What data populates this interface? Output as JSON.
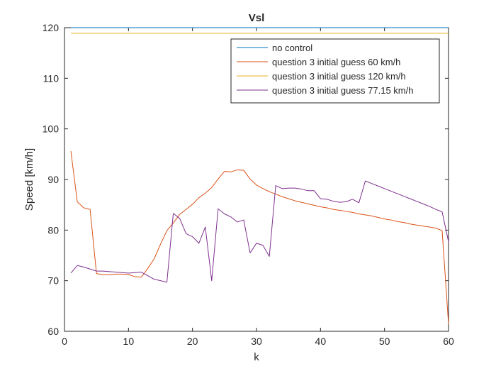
{
  "chart_data": {
    "type": "line",
    "title": "Vsl",
    "xlabel": "k",
    "ylabel": "Speed [km/h]",
    "xlim": [
      0,
      60
    ],
    "ylim": [
      60,
      120
    ],
    "xticks": [
      0,
      10,
      20,
      30,
      40,
      50,
      60
    ],
    "yticks": [
      60,
      70,
      80,
      90,
      100,
      110,
      120
    ],
    "grid": false,
    "legend_position": "top-right",
    "series": [
      {
        "name": "no control",
        "color": "#0072BD",
        "x": [
          1,
          60
        ],
        "y": [
          120,
          120
        ]
      },
      {
        "name": "question 3 initial guess 60 km/h",
        "color": "#D95319",
        "x": [
          1,
          2,
          3,
          4,
          5,
          6,
          7,
          8,
          9,
          10,
          11,
          12,
          13,
          14,
          15,
          16,
          17,
          18,
          19,
          20,
          21,
          22,
          23,
          24,
          25,
          26,
          27,
          28,
          29,
          30,
          31,
          32,
          33,
          34,
          35,
          36,
          37,
          38,
          39,
          40,
          41,
          42,
          43,
          44,
          45,
          46,
          47,
          48,
          49,
          50,
          51,
          52,
          53,
          54,
          55,
          56,
          57,
          58,
          59,
          60
        ],
        "y": [
          95.6,
          85.6,
          84.4,
          84.1,
          71.4,
          71.2,
          71.2,
          71.3,
          71.3,
          71.2,
          70.8,
          70.7,
          72.4,
          74.3,
          77.2,
          79.9,
          81.4,
          83.1,
          84.1,
          85.1,
          86.4,
          87.3,
          88.4,
          90.1,
          91.6,
          91.5,
          91.9,
          91.8,
          90.1,
          88.9,
          88.2,
          87.6,
          87.1,
          86.6,
          86.2,
          85.8,
          85.5,
          85.2,
          84.9,
          84.6,
          84.4,
          84.1,
          83.9,
          83.7,
          83.5,
          83.2,
          83.0,
          82.8,
          82.5,
          82.2,
          82.0,
          81.7,
          81.5,
          81.2,
          81.0,
          80.8,
          80.6,
          80.4,
          79.9,
          61.4
        ]
      },
      {
        "name": "question 3 initial guess 120 km/h",
        "color": "#EDB120",
        "x": [
          1,
          60
        ],
        "y": [
          118.9,
          118.9
        ]
      },
      {
        "name": "question 3 initial guess 77.15 km/h",
        "color": "#7E2F8E",
        "x": [
          1,
          2,
          3,
          4,
          5,
          6,
          7,
          8,
          9,
          10,
          11,
          12,
          13,
          14,
          15,
          16,
          17,
          18,
          19,
          20,
          21,
          22,
          23,
          24,
          25,
          26,
          27,
          28,
          29,
          30,
          31,
          32,
          33,
          34,
          35,
          36,
          37,
          38,
          39,
          40,
          41,
          42,
          43,
          44,
          45,
          46,
          47,
          48,
          49,
          50,
          51,
          52,
          53,
          54,
          55,
          56,
          57,
          58,
          59,
          60
        ],
        "y": [
          71.5,
          73.0,
          72.7,
          72.3,
          71.9,
          71.9,
          71.8,
          71.7,
          71.6,
          71.5,
          71.6,
          71.7,
          71.0,
          70.3,
          70.0,
          69.7,
          83.3,
          82.3,
          79.3,
          78.7,
          77.4,
          80.6,
          70.0,
          84.2,
          83.2,
          82.6,
          81.6,
          82.0,
          75.5,
          77.4,
          77.0,
          74.8,
          88.8,
          88.2,
          88.3,
          88.3,
          88.1,
          87.8,
          87.8,
          86.2,
          86.1,
          85.7,
          85.5,
          85.6,
          86.1,
          85.4,
          89.7,
          89.2,
          88.7,
          88.2,
          87.7,
          87.2,
          86.7,
          86.2,
          85.7,
          85.2,
          84.7,
          84.1,
          83.6,
          77.7
        ]
      }
    ]
  }
}
